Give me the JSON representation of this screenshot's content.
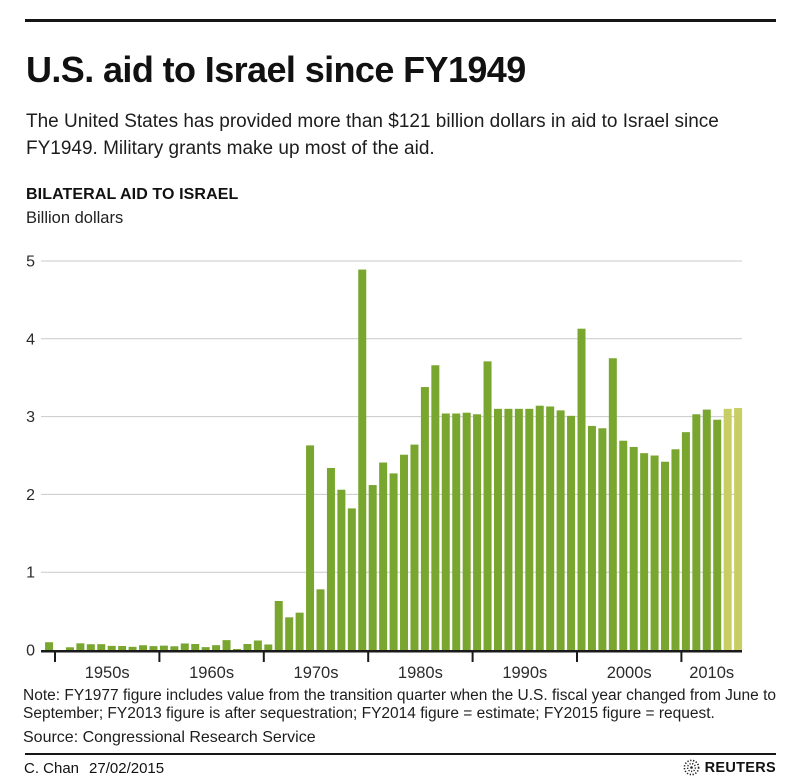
{
  "header": {
    "title": "U.S. aid to Israel since FY1949",
    "subtitle": "The United States has provided more than $121 billion dollars in aid to Israel since FY1949. Military grants make up most of the aid."
  },
  "chart": {
    "heading": "BILATERAL AID TO ISRAEL",
    "unit_label": "Billion dollars"
  },
  "chart_data": {
    "type": "bar",
    "title": "BILATERAL AID TO ISRAEL",
    "xlabel": "",
    "ylabel": "Billion dollars",
    "ylim": [
      0,
      5
    ],
    "yticks": [
      0,
      1,
      2,
      3,
      4,
      5
    ],
    "grid": "horizontal",
    "legend": "none",
    "decade_tick_labels": [
      "1950s",
      "1960s",
      "1970s",
      "1980s",
      "1990s",
      "2000s",
      "2010s"
    ],
    "x_start_year": 1949,
    "years": [
      1949,
      1950,
      1951,
      1952,
      1953,
      1954,
      1955,
      1956,
      1957,
      1958,
      1959,
      1960,
      1961,
      1962,
      1963,
      1964,
      1965,
      1966,
      1967,
      1968,
      1969,
      1970,
      1971,
      1972,
      1973,
      1974,
      1975,
      1976,
      1977,
      1978,
      1979,
      1980,
      1981,
      1982,
      1983,
      1984,
      1985,
      1986,
      1987,
      1988,
      1989,
      1990,
      1991,
      1992,
      1993,
      1994,
      1995,
      1996,
      1997,
      1998,
      1999,
      2000,
      2001,
      2002,
      2003,
      2004,
      2005,
      2006,
      2007,
      2008,
      2009,
      2010,
      2011,
      2012,
      2013,
      2014,
      2015
    ],
    "series": [
      {
        "name": "Bilateral aid to Israel (billion dollars)",
        "values": [
          0.1,
          0,
          0.035,
          0.086,
          0.074,
          0.075,
          0.053,
          0.051,
          0.041,
          0.061,
          0.05,
          0.056,
          0.048,
          0.084,
          0.077,
          0.037,
          0.062,
          0.127,
          0.013,
          0.077,
          0.122,
          0.071,
          0.63,
          0.42,
          0.48,
          2.63,
          0.78,
          2.34,
          2.06,
          1.82,
          4.89,
          2.12,
          2.41,
          2.27,
          2.51,
          2.64,
          3.38,
          3.66,
          3.04,
          3.04,
          3.05,
          3.03,
          3.71,
          3.1,
          3.1,
          3.1,
          3.1,
          3.14,
          3.13,
          3.08,
          3.01,
          4.13,
          2.88,
          2.85,
          3.75,
          2.69,
          2.61,
          2.53,
          2.5,
          2.42,
          2.58,
          2.8,
          3.03,
          3.09,
          2.96,
          3.1,
          3.11
        ]
      }
    ],
    "highlight_years": [
      2014,
      2015
    ],
    "colors": {
      "bar": "#79A62E",
      "bar_highlight": "#C8CE63",
      "gridline": "#c9c9c9",
      "axis": "#1a1a1a",
      "tick_text": "#2b2b2b"
    }
  },
  "footer": {
    "note": "Note: FY1977 figure includes value from the transition quarter when the U.S. fiscal year changed from June to September; FY2013 figure is after sequestration; FY2014 figure = estimate; FY2015 figure = request.",
    "source": "Source: Congressional Research Service",
    "credit": "C. Chan",
    "date": "27/02/2015",
    "brand": "REUTERS"
  }
}
